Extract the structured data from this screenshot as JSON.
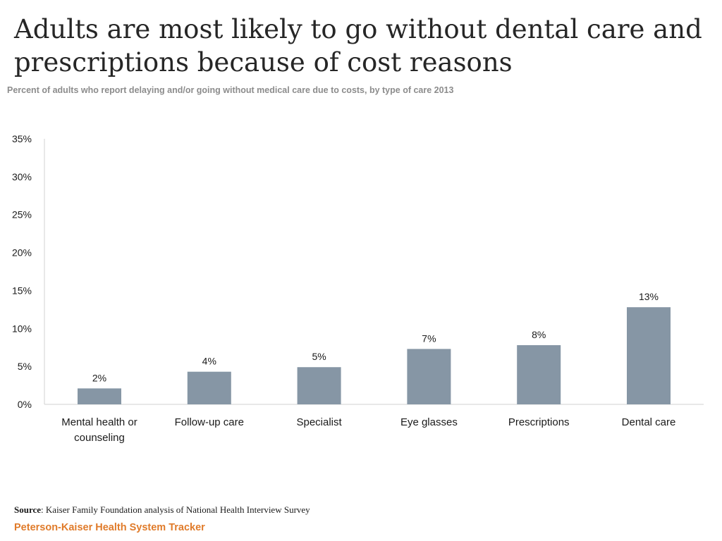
{
  "title": "Adults are most likely to go without dental care and prescriptions because of cost reasons",
  "subtitle": "Percent of adults who report delaying and/or going without medical care due to costs, by type of care 2013",
  "source": {
    "label": "Source",
    "text": ": Kaiser Family Foundation analysis of National Health Interview Survey"
  },
  "brand": "Peterson-Kaiser Health System Tracker",
  "colors": {
    "bar": "#8696a5",
    "axis": "#d0d0d0",
    "brand": "#e07b2a"
  },
  "chart_data": {
    "type": "bar",
    "title": "",
    "xlabel": "",
    "ylabel": "",
    "categories": [
      [
        "Mental health or",
        "counseling"
      ],
      [
        "Follow-up care"
      ],
      [
        "Specialist"
      ],
      [
        "Eye glasses"
      ],
      [
        "Prescriptions"
      ],
      [
        "Dental care"
      ]
    ],
    "values": [
      2.1,
      4.3,
      4.9,
      7.3,
      7.8,
      12.8
    ],
    "value_labels": [
      "2%",
      "4%",
      "5%",
      "7%",
      "8%",
      "13%"
    ],
    "ylim": [
      0,
      35
    ],
    "yticks": [
      0,
      5,
      10,
      15,
      20,
      25,
      30,
      35
    ],
    "ytick_labels": [
      "0%",
      "5%",
      "10%",
      "15%",
      "20%",
      "25%",
      "30%",
      "35%"
    ],
    "grid": false,
    "legend": "none"
  }
}
